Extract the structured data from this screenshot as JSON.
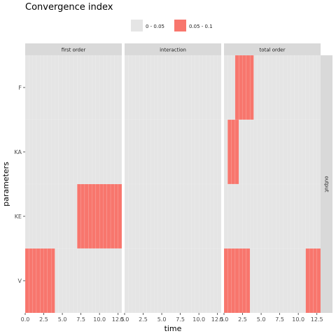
{
  "chart_data": {
    "type": "heatmap",
    "title": "Convergence index",
    "xlabel": "time",
    "ylabel": "parameters",
    "legend": {
      "placement": "top",
      "entries": [
        {
          "label": "0 - 0.05",
          "color": "#e5e5e5"
        },
        {
          "label": "0.05 - 0.1",
          "color": "#f8766d"
        }
      ]
    },
    "facet_columns": [
      "first order",
      "interaction",
      "total order"
    ],
    "facet_row": "output",
    "parameters": [
      "F",
      "KA",
      "KE",
      "V"
    ],
    "time": [
      0,
      0.5,
      1,
      1.5,
      2,
      2.5,
      3,
      3.5,
      4,
      4.5,
      5,
      5.5,
      6,
      6.5,
      7,
      7.5,
      8,
      8.5,
      9,
      9.5,
      10,
      10.5,
      11,
      11.5,
      12,
      12.5
    ],
    "xlim": [
      0,
      13
    ],
    "x_ticks": [
      0.0,
      2.5,
      5.0,
      7.5,
      10.0,
      12.5
    ],
    "x_tick_labels": {
      "first order": [
        "0.0",
        "2.5",
        "5.0",
        "7.5",
        "10.0",
        "12.5"
      ],
      "interaction": [
        "0.0",
        "2.5",
        "5.0",
        "7.5",
        "10.0",
        "12.5"
      ],
      "total order": [
        "0.0",
        "2.5",
        "5.0",
        "7.5",
        "10.0",
        "12.5"
      ]
    },
    "grid": true,
    "highlighted": [
      {
        "facet": "first order",
        "parameter": "KE",
        "time_from": 7.0,
        "time_to": 12.5,
        "class": "0.05 - 0.1"
      },
      {
        "facet": "first order",
        "parameter": "V",
        "time_from": 0.0,
        "time_to": 3.5,
        "class": "0.05 - 0.1"
      },
      {
        "facet": "total order",
        "parameter": "F",
        "time_from": 1.5,
        "time_to": 3.5,
        "class": "0.05 - 0.1"
      },
      {
        "facet": "total order",
        "parameter": "KA",
        "time_from": 0.5,
        "time_to": 1.5,
        "class": "0.05 - 0.1"
      },
      {
        "facet": "total order",
        "parameter": "V",
        "time_from": 0.0,
        "time_to": 3.0,
        "class": "0.05 - 0.1"
      },
      {
        "facet": "total order",
        "parameter": "V",
        "time_from": 11.0,
        "time_to": 12.5,
        "class": "0.05 - 0.1"
      }
    ]
  }
}
